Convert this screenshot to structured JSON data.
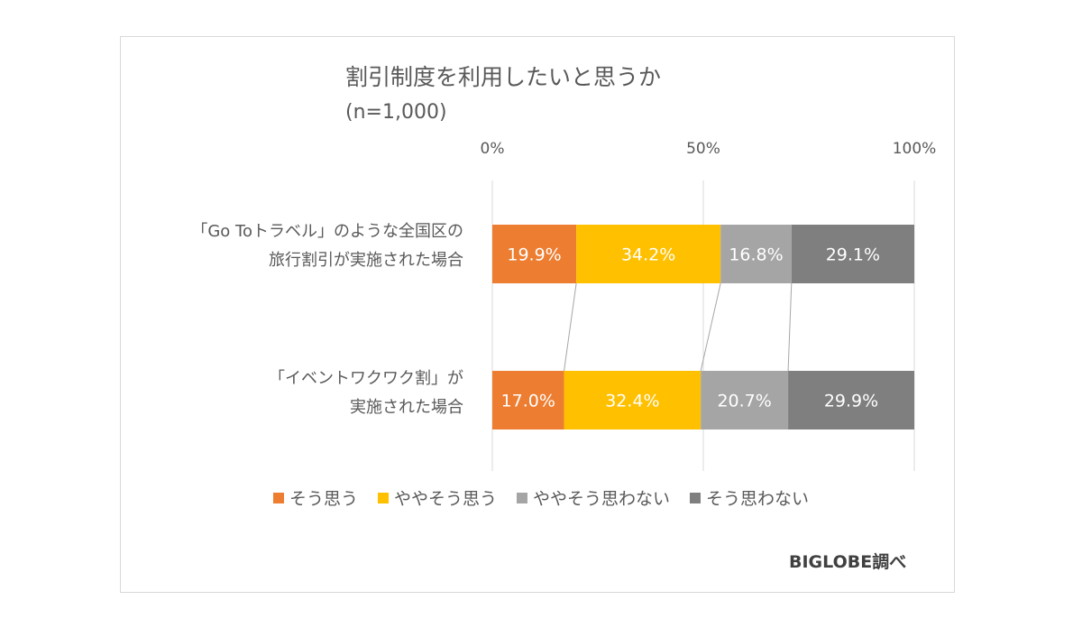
{
  "chart_data": {
    "type": "bar",
    "orientation": "horizontal",
    "stacked": "percent",
    "title": "割引制度を利用したいと思うか",
    "subtitle": "(n=1,000)",
    "xlim": [
      0,
      100
    ],
    "ticks": [
      "0%",
      "50%",
      "100%"
    ],
    "tick_values": [
      0,
      50,
      100
    ],
    "grid": true,
    "legend_position": "bottom",
    "categories": [
      [
        "「Go Toトラベル」のような全国区の",
        "旅行割引が実施された場合"
      ],
      [
        "「イベントワクワク割」が",
        "実施された場合"
      ]
    ],
    "series": [
      {
        "name": "そう思う",
        "values": [
          19.9,
          17.0
        ],
        "labels": [
          "19.9%",
          "17.0%"
        ],
        "color": "#ED7D31"
      },
      {
        "name": "ややそう思う",
        "values": [
          34.2,
          32.4
        ],
        "labels": [
          "34.2%",
          "32.4%"
        ],
        "color": "#FFC000"
      },
      {
        "name": "ややそう思わない",
        "values": [
          16.8,
          20.7
        ],
        "labels": [
          "16.8%",
          "20.7%"
        ],
        "color": "#A5A5A5"
      },
      {
        "name": "そう思わない",
        "values": [
          29.1,
          29.9
        ],
        "labels": [
          "29.1%",
          "29.9%"
        ],
        "color": "#7F7F7F"
      }
    ],
    "series_lines": true
  },
  "source": "BIGLOBE調べ"
}
